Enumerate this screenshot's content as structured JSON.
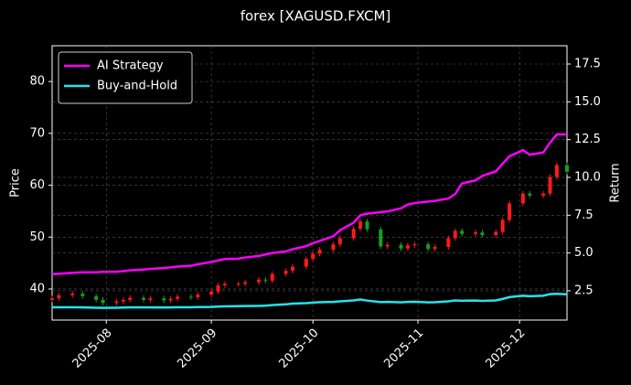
{
  "chart_data": {
    "type": "candlestick",
    "title": "forex [XAGUSD.FXCM]",
    "ylabel": "Price",
    "y2label": "Return",
    "x": [
      "2025-07-16",
      "2025-07-18",
      "2025-07-22",
      "2025-07-25",
      "2025-07-29",
      "2025-07-31",
      "2025-08-04",
      "2025-08-06",
      "2025-08-08",
      "2025-08-12",
      "2025-08-14",
      "2025-08-18",
      "2025-08-20",
      "2025-08-22",
      "2025-08-26",
      "2025-08-28",
      "2025-09-01",
      "2025-09-03",
      "2025-09-05",
      "2025-09-09",
      "2025-09-11",
      "2025-09-15",
      "2025-09-17",
      "2025-09-19",
      "2025-09-23",
      "2025-09-25",
      "2025-09-29",
      "2025-10-01",
      "2025-10-03",
      "2025-10-07",
      "2025-10-09",
      "2025-10-13",
      "2025-10-15",
      "2025-10-17",
      "2025-10-21",
      "2025-10-23",
      "2025-10-27",
      "2025-10-29",
      "2025-10-31",
      "2025-11-04",
      "2025-11-06",
      "2025-11-10",
      "2025-11-12",
      "2025-11-14",
      "2025-11-18",
      "2025-11-20",
      "2025-11-24",
      "2025-11-26",
      "2025-11-28",
      "2025-12-02",
      "2025-12-04",
      "2025-12-08",
      "2025-12-10",
      "2025-12-12",
      "2025-12-15"
    ],
    "open": [
      37.9,
      38.2,
      38.8,
      39.1,
      38.6,
      37.9,
      37.3,
      37.6,
      37.9,
      38.3,
      37.9,
      38.2,
      37.8,
      38.1,
      38.5,
      38.4,
      38.9,
      39.5,
      40.7,
      41.0,
      41.0,
      41.3,
      41.8,
      41.6,
      42.9,
      43.5,
      44.3,
      45.8,
      46.8,
      47.6,
      48.6,
      49.8,
      51.6,
      53.0,
      51.5,
      48.2,
      48.5,
      47.8,
      48.4,
      48.6,
      47.7,
      48.1,
      49.8,
      51.2,
      50.6,
      50.9,
      50.4,
      51.0,
      53.3,
      56.5,
      58.4,
      58.0,
      58.4,
      61.6,
      63.9
    ],
    "high": [
      38.7,
      39.3,
      39.6,
      39.6,
      39.1,
      38.4,
      38.1,
      38.4,
      38.8,
      38.8,
      38.7,
      38.7,
      38.6,
      39.0,
      39.0,
      39.4,
      40.0,
      41.2,
      41.5,
      41.5,
      41.8,
      42.3,
      42.3,
      43.4,
      44.0,
      44.8,
      46.3,
      47.3,
      48.1,
      49.1,
      50.3,
      52.1,
      53.5,
      53.5,
      52.0,
      49.0,
      49.0,
      48.9,
      49.1,
      49.1,
      48.6,
      50.3,
      51.7,
      51.7,
      51.4,
      51.4,
      51.5,
      53.8,
      57.0,
      58.9,
      58.9,
      58.9,
      62.1,
      64.4,
      64.4
    ],
    "low": [
      37.4,
      37.7,
      38.3,
      38.1,
      37.4,
      36.8,
      36.8,
      37.1,
      37.4,
      37.4,
      37.4,
      37.3,
      37.3,
      37.6,
      37.9,
      37.9,
      38.4,
      39.0,
      40.2,
      40.5,
      40.5,
      40.8,
      41.1,
      41.1,
      42.4,
      43.0,
      43.8,
      45.3,
      46.3,
      47.1,
      48.1,
      49.3,
      51.1,
      51.0,
      47.7,
      47.7,
      47.3,
      47.3,
      47.9,
      47.2,
      47.2,
      47.6,
      49.3,
      50.1,
      50.1,
      49.9,
      49.9,
      50.5,
      52.8,
      56.0,
      57.5,
      57.5,
      57.9,
      61.1,
      62.1
    ],
    "close": [
      38.2,
      38.8,
      39.1,
      38.6,
      37.9,
      37.3,
      37.6,
      37.9,
      38.3,
      37.9,
      38.2,
      37.8,
      38.1,
      38.5,
      38.4,
      38.9,
      39.5,
      40.7,
      41.0,
      41.0,
      41.3,
      41.8,
      41.6,
      42.9,
      43.5,
      44.3,
      45.8,
      46.8,
      47.6,
      48.6,
      49.8,
      51.6,
      53.0,
      51.5,
      48.2,
      48.5,
      47.8,
      48.4,
      48.6,
      47.7,
      48.1,
      49.8,
      51.2,
      50.6,
      50.9,
      50.4,
      51.0,
      53.3,
      56.5,
      58.4,
      58.0,
      58.4,
      61.6,
      63.9,
      62.6
    ],
    "up_color": "#ff1a1a",
    "down_color": "#1a9e1a",
    "series": [
      {
        "name": "AI Strategy",
        "color": "#ff00ff",
        "axis": "y2",
        "values": [
          3.6,
          3.62,
          3.68,
          3.72,
          3.72,
          3.75,
          3.76,
          3.8,
          3.85,
          3.9,
          3.95,
          4.0,
          4.05,
          4.1,
          4.15,
          4.25,
          4.4,
          4.5,
          4.6,
          4.62,
          4.7,
          4.8,
          4.9,
          5.0,
          5.1,
          5.25,
          5.45,
          5.65,
          5.8,
          6.1,
          6.5,
          7.0,
          7.5,
          7.6,
          7.7,
          7.75,
          7.95,
          8.2,
          8.3,
          8.4,
          8.45,
          8.6,
          8.9,
          9.6,
          9.8,
          10.1,
          10.4,
          10.9,
          11.4,
          11.8,
          11.5,
          11.65,
          12.3,
          12.84,
          12.84
        ]
      },
      {
        "name": "Buy-and-Hold",
        "color": "#22e5ee",
        "axis": "y2",
        "values": [
          1.41,
          1.41,
          1.41,
          1.4,
          1.38,
          1.37,
          1.38,
          1.39,
          1.4,
          1.4,
          1.4,
          1.39,
          1.4,
          1.41,
          1.41,
          1.42,
          1.43,
          1.45,
          1.47,
          1.48,
          1.49,
          1.5,
          1.51,
          1.55,
          1.6,
          1.65,
          1.68,
          1.72,
          1.74,
          1.76,
          1.8,
          1.86,
          1.92,
          1.85,
          1.75,
          1.76,
          1.73,
          1.76,
          1.77,
          1.73,
          1.74,
          1.8,
          1.86,
          1.84,
          1.85,
          1.83,
          1.86,
          1.96,
          2.08,
          2.17,
          2.14,
          2.17,
          2.28,
          2.3,
          2.26
        ]
      }
    ],
    "xlim": [
      "2025-07-16",
      "2025-12-15"
    ],
    "xticks": [
      "2025-08",
      "2025-09",
      "2025-10",
      "2025-11",
      "2025-12"
    ],
    "ylim": [
      34,
      86.9
    ],
    "yticks": [
      40,
      50,
      60,
      70,
      80
    ],
    "y2lim": [
      0.56,
      18.71
    ],
    "y2ticks": [
      2.5,
      {
        "value": 5,
        "label": "5.0"
      },
      7.5,
      {
        "value": 10,
        "label": "10.0"
      },
      12.5,
      {
        "value": 15,
        "label": "15.0"
      },
      17.5
    ],
    "grid": true,
    "legend": "upper left"
  }
}
